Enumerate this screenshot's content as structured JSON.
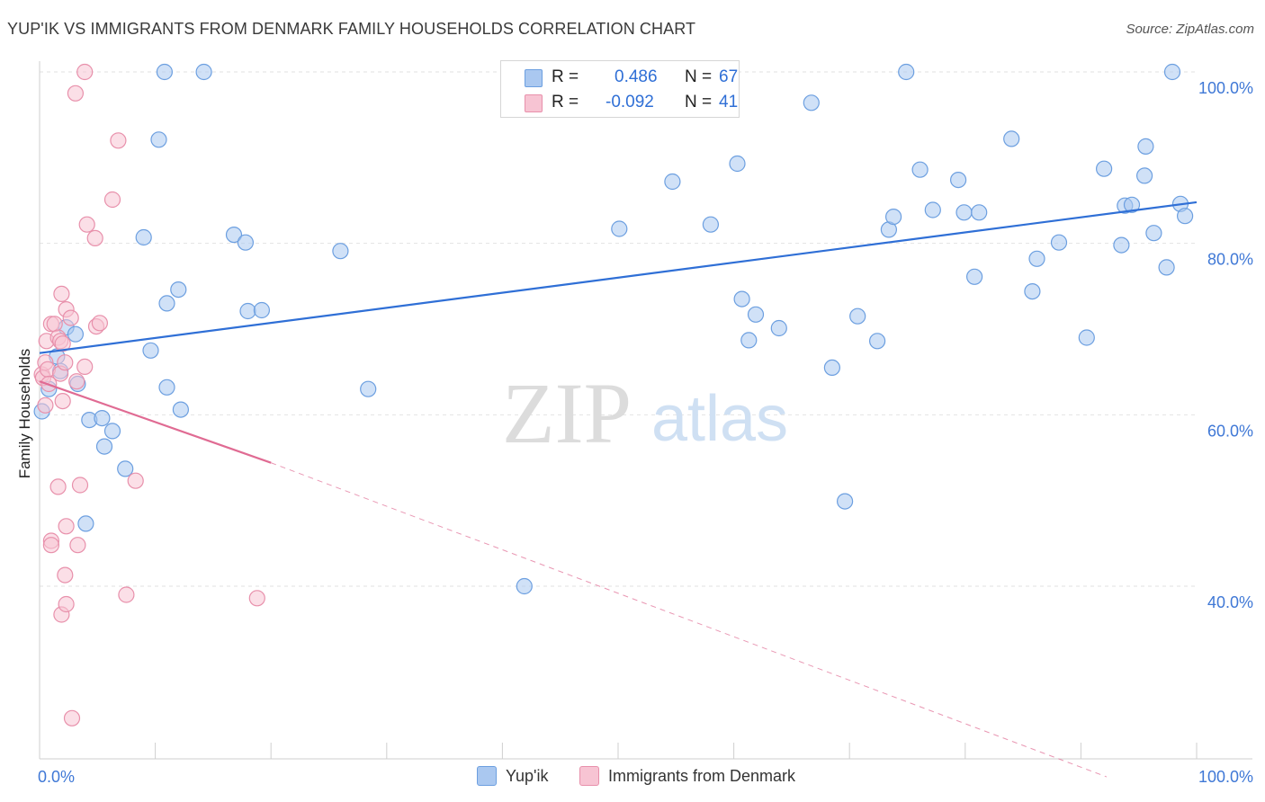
{
  "title": "YUP'IK VS IMMIGRANTS FROM DENMARK FAMILY HOUSEHOLDS CORRELATION CHART",
  "source": "Source: ZipAtlas.com",
  "watermark": {
    "zip": "ZIP",
    "atlas": "atlas"
  },
  "stats": {
    "rows": [
      {
        "r_label": "R =",
        "r_value": "0.486",
        "n_label": "N =",
        "n_value": "67",
        "color": "#aac8f0",
        "border": "#6c9fe0"
      },
      {
        "r_label": "R =",
        "r_value": "-0.092",
        "n_label": "N =",
        "n_value": "41",
        "color": "#f7c4d3",
        "border": "#e890ab"
      }
    ]
  },
  "legend": {
    "items": [
      {
        "label": "Yup'ik",
        "color": "#aac8f0",
        "border": "#6c9fe0"
      },
      {
        "label": "Immigrants from Denmark",
        "color": "#f7c4d3",
        "border": "#e890ab"
      }
    ]
  },
  "chart_data": {
    "type": "scatter",
    "title": "YUP'IK VS IMMIGRANTS FROM DENMARK FAMILY HOUSEHOLDS CORRELATION CHART",
    "xlabel": "",
    "ylabel": "Family Households",
    "xlim": [
      0,
      100
    ],
    "ylim": [
      22,
      102
    ],
    "x_tick_labels": [
      {
        "value": 0,
        "label": "0.0%"
      },
      {
        "value": 100,
        "label": "100.0%"
      }
    ],
    "y_tick_labels": [
      {
        "value": 100,
        "label": "100.0%"
      },
      {
        "value": 80,
        "label": "80.0%"
      },
      {
        "value": 60,
        "label": "60.0%"
      },
      {
        "value": 40,
        "label": "40.0%"
      }
    ],
    "x_minor_ticks": [
      0,
      10,
      20,
      30,
      40,
      50,
      60,
      70,
      80,
      90,
      100
    ],
    "series": [
      {
        "name": "Yup'ik",
        "color": "#aac8f0",
        "stroke": "#6c9fe0",
        "trend": {
          "x": [
            0,
            100
          ],
          "y": [
            67.2,
            84.8
          ],
          "color": "#2f6fd6"
        },
        "points": [
          [
            0.2,
            60.4
          ],
          [
            0.8,
            63.0
          ],
          [
            1.5,
            66.8
          ],
          [
            1.8,
            65.1
          ],
          [
            2.3,
            70.2
          ],
          [
            3.1,
            69.4
          ],
          [
            3.3,
            63.6
          ],
          [
            4.3,
            59.4
          ],
          [
            5.4,
            59.6
          ],
          [
            5.6,
            56.3
          ],
          [
            6.3,
            58.1
          ],
          [
            7.4,
            53.7
          ],
          [
            4.0,
            47.3
          ],
          [
            9.0,
            80.7
          ],
          [
            9.6,
            67.5
          ],
          [
            10.3,
            92.1
          ],
          [
            10.8,
            100.0
          ],
          [
            11.0,
            73.0
          ],
          [
            11.0,
            63.2
          ],
          [
            12.2,
            60.6
          ],
          [
            12.0,
            74.6
          ],
          [
            14.2,
            100.0
          ],
          [
            16.8,
            81.0
          ],
          [
            18.0,
            72.1
          ],
          [
            17.8,
            80.1
          ],
          [
            19.2,
            72.2
          ],
          [
            26.0,
            79.1
          ],
          [
            28.4,
            63.0
          ],
          [
            41.9,
            40.0
          ],
          [
            50.1,
            81.7
          ],
          [
            54.7,
            87.2
          ],
          [
            58.0,
            82.2
          ],
          [
            60.3,
            89.3
          ],
          [
            60.7,
            73.5
          ],
          [
            61.3,
            68.7
          ],
          [
            61.9,
            71.7
          ],
          [
            63.9,
            70.1
          ],
          [
            66.7,
            96.4
          ],
          [
            68.5,
            65.5
          ],
          [
            69.6,
            49.9
          ],
          [
            70.7,
            71.5
          ],
          [
            72.4,
            68.6
          ],
          [
            73.4,
            81.6
          ],
          [
            73.8,
            83.1
          ],
          [
            74.9,
            100.0
          ],
          [
            76.1,
            88.6
          ],
          [
            77.2,
            83.9
          ],
          [
            79.4,
            87.4
          ],
          [
            79.9,
            83.6
          ],
          [
            80.8,
            76.1
          ],
          [
            81.2,
            83.6
          ],
          [
            84.0,
            92.2
          ],
          [
            85.8,
            74.4
          ],
          [
            86.2,
            78.2
          ],
          [
            88.1,
            80.1
          ],
          [
            90.5,
            69.0
          ],
          [
            92.0,
            88.7
          ],
          [
            93.8,
            84.4
          ],
          [
            93.5,
            79.8
          ],
          [
            94.4,
            84.5
          ],
          [
            95.5,
            87.9
          ],
          [
            95.6,
            91.3
          ],
          [
            96.3,
            81.2
          ],
          [
            97.4,
            77.2
          ],
          [
            97.9,
            100.0
          ],
          [
            98.6,
            84.6
          ],
          [
            99.0,
            83.2
          ]
        ]
      },
      {
        "name": "Immigrants from Denmark",
        "color": "#f7c4d3",
        "stroke": "#e890ab",
        "trend": {
          "x": [
            0,
            20
          ],
          "y": [
            63.9,
            54.4
          ],
          "color": "#e06b93"
        },
        "trend_dashed": {
          "x": [
            20,
            100
          ],
          "y": [
            54.4,
            16.5
          ]
        },
        "points": [
          [
            0.2,
            64.7
          ],
          [
            0.3,
            64.3
          ],
          [
            0.5,
            66.1
          ],
          [
            0.5,
            61.1
          ],
          [
            0.6,
            68.6
          ],
          [
            0.7,
            65.3
          ],
          [
            0.8,
            63.6
          ],
          [
            1.0,
            70.6
          ],
          [
            1.3,
            70.6
          ],
          [
            1.6,
            69.0
          ],
          [
            1.8,
            68.6
          ],
          [
            1.8,
            64.8
          ],
          [
            1.9,
            74.1
          ],
          [
            2.0,
            68.3
          ],
          [
            2.0,
            61.6
          ],
          [
            2.2,
            66.1
          ],
          [
            2.3,
            72.3
          ],
          [
            2.7,
            71.3
          ],
          [
            3.2,
            63.9
          ],
          [
            3.9,
            65.6
          ],
          [
            4.1,
            82.2
          ],
          [
            4.8,
            80.6
          ],
          [
            4.9,
            70.3
          ],
          [
            5.2,
            70.7
          ],
          [
            6.3,
            85.1
          ],
          [
            6.8,
            92.0
          ],
          [
            7.5,
            39.0
          ],
          [
            8.3,
            52.3
          ],
          [
            1.0,
            45.3
          ],
          [
            1.0,
            44.8
          ],
          [
            1.6,
            51.6
          ],
          [
            1.9,
            36.7
          ],
          [
            2.2,
            41.3
          ],
          [
            2.3,
            47.0
          ],
          [
            2.3,
            37.9
          ],
          [
            3.1,
            97.5
          ],
          [
            2.8,
            24.6
          ],
          [
            3.5,
            51.8
          ],
          [
            3.3,
            44.8
          ],
          [
            3.9,
            100.0
          ],
          [
            18.8,
            38.6
          ]
        ]
      }
    ]
  }
}
